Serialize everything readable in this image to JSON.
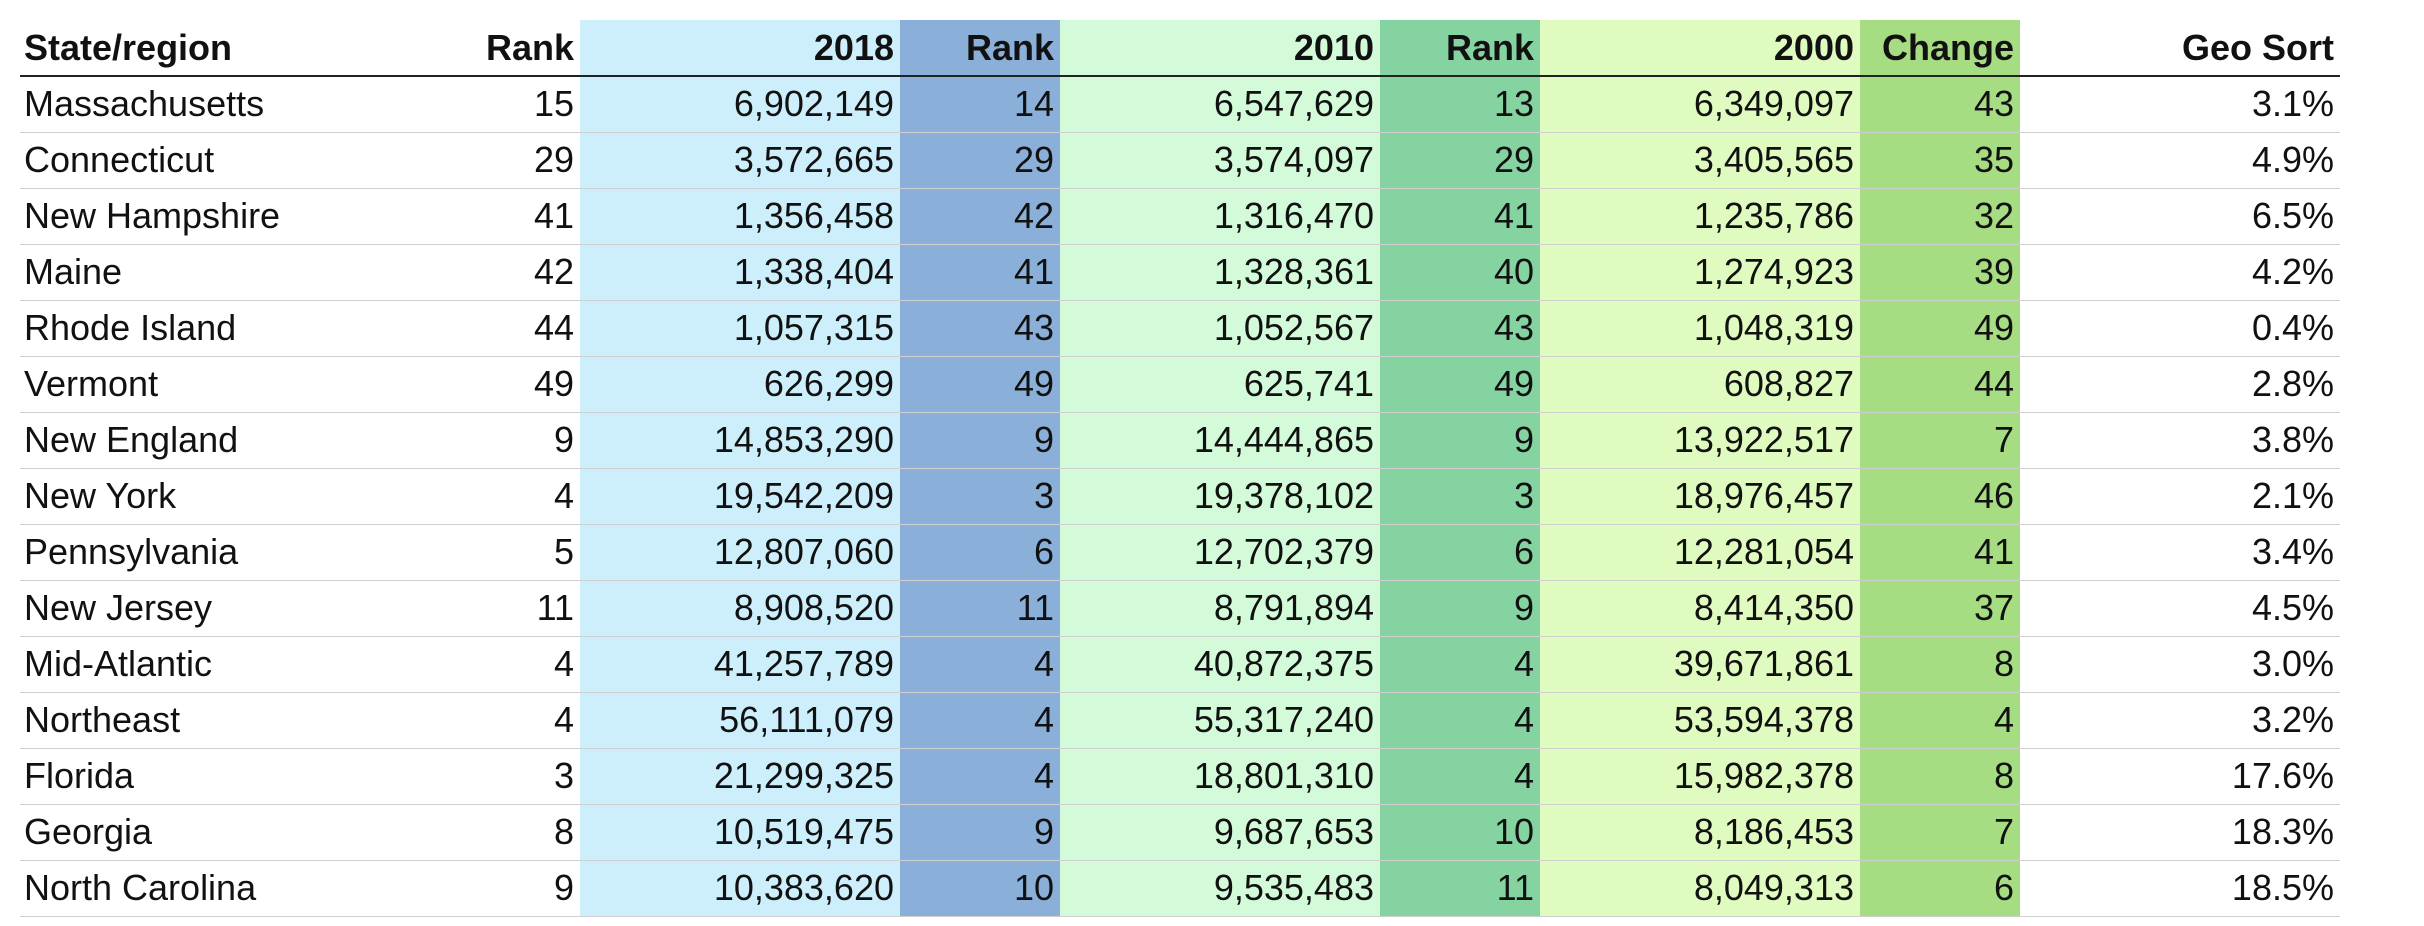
{
  "headers": {
    "state_region": "State/region",
    "rank_a": "Rank",
    "pop_2018": "2018",
    "rank_b": "Rank",
    "pop_2010": "2010",
    "rank_c": "Rank",
    "pop_2000": "2000",
    "change": "Change",
    "geo_sort": "Geo Sort"
  },
  "rows": [
    {
      "name": "Massachusetts",
      "rank_a": "15",
      "pop_2018": "6,902,149",
      "rank_b": "14",
      "pop_2010": "6,547,629",
      "rank_c": "13",
      "pop_2000": "6,349,097",
      "change": "43",
      "geo_sort": "3.1%",
      "level": "indent"
    },
    {
      "name": "Connecticut",
      "rank_a": "29",
      "pop_2018": "3,572,665",
      "rank_b": "29",
      "pop_2010": "3,574,097",
      "rank_c": "29",
      "pop_2000": "3,405,565",
      "change": "35",
      "geo_sort": "4.9%",
      "level": "indent"
    },
    {
      "name": "New Hampshire",
      "rank_a": "41",
      "pop_2018": "1,356,458",
      "rank_b": "42",
      "pop_2010": "1,316,470",
      "rank_c": "41",
      "pop_2000": "1,235,786",
      "change": "32",
      "geo_sort": "6.5%",
      "level": "indent"
    },
    {
      "name": "Maine",
      "rank_a": "42",
      "pop_2018": "1,338,404",
      "rank_b": "41",
      "pop_2010": "1,328,361",
      "rank_c": "40",
      "pop_2000": "1,274,923",
      "change": "39",
      "geo_sort": "4.2%",
      "level": "indent"
    },
    {
      "name": "Rhode Island",
      "rank_a": "44",
      "pop_2018": "1,057,315",
      "rank_b": "43",
      "pop_2010": "1,052,567",
      "rank_c": "43",
      "pop_2000": "1,048,319",
      "change": "49",
      "geo_sort": "0.4%",
      "level": "indent"
    },
    {
      "name": "Vermont",
      "rank_a": "49",
      "pop_2018": "626,299",
      "rank_b": "49",
      "pop_2010": "625,741",
      "rank_c": "49",
      "pop_2000": "608,827",
      "change": "44",
      "geo_sort": "2.8%",
      "level": "indent"
    },
    {
      "name": "New England",
      "rank_a": "9",
      "pop_2018": "14,853,290",
      "rank_b": "9",
      "pop_2010": "14,444,865",
      "rank_c": "9",
      "pop_2000": "13,922,517",
      "change": "7",
      "geo_sort": "3.8%",
      "level": "subtotal"
    },
    {
      "name": "New York",
      "rank_a": "4",
      "pop_2018": "19,542,209",
      "rank_b": "3",
      "pop_2010": "19,378,102",
      "rank_c": "3",
      "pop_2000": "18,976,457",
      "change": "46",
      "geo_sort": "2.1%",
      "level": "indent"
    },
    {
      "name": "Pennsylvania",
      "rank_a": "5",
      "pop_2018": "12,807,060",
      "rank_b": "6",
      "pop_2010": "12,702,379",
      "rank_c": "6",
      "pop_2000": "12,281,054",
      "change": "41",
      "geo_sort": "3.4%",
      "level": "indent"
    },
    {
      "name": "New Jersey",
      "rank_a": "11",
      "pop_2018": "8,908,520",
      "rank_b": "11",
      "pop_2010": "8,791,894",
      "rank_c": "9",
      "pop_2000": "8,414,350",
      "change": "37",
      "geo_sort": "4.5%",
      "level": "indent"
    },
    {
      "name": "Mid-Atlantic",
      "rank_a": "4",
      "pop_2018": "41,257,789",
      "rank_b": "4",
      "pop_2010": "40,872,375",
      "rank_c": "4",
      "pop_2000": "39,671,861",
      "change": "8",
      "geo_sort": "3.0%",
      "level": "subtotal"
    },
    {
      "name": "Northeast",
      "rank_a": "4",
      "pop_2018": "56,111,079",
      "rank_b": "4",
      "pop_2010": "55,317,240",
      "rank_c": "4",
      "pop_2000": "53,594,378",
      "change": "4",
      "geo_sort": "3.2%",
      "level": "subtotal"
    },
    {
      "name": "Florida",
      "rank_a": "3",
      "pop_2018": "21,299,325",
      "rank_b": "4",
      "pop_2010": "18,801,310",
      "rank_c": "4",
      "pop_2000": "15,982,378",
      "change": "8",
      "geo_sort": "17.6%",
      "level": "indent"
    },
    {
      "name": "Georgia",
      "rank_a": "8",
      "pop_2018": "10,519,475",
      "rank_b": "9",
      "pop_2010": "9,687,653",
      "rank_c": "10",
      "pop_2000": "8,186,453",
      "change": "7",
      "geo_sort": "18.3%",
      "level": "indent"
    },
    {
      "name": "North Carolina",
      "rank_a": "9",
      "pop_2018": "10,383,620",
      "rank_b": "10",
      "pop_2010": "9,535,483",
      "rank_c": "11",
      "pop_2000": "8,049,313",
      "change": "6",
      "geo_sort": "18.5%",
      "level": "indent"
    }
  ]
}
